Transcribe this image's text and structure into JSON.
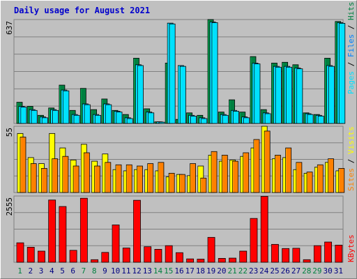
{
  "title": "Daily usage for August 2021",
  "chart_data": [
    {
      "type": "bar",
      "panel": "top",
      "max_label": "637",
      "ylim": [
        0,
        637
      ],
      "grid": true,
      "categories": [
        "1",
        "2",
        "3",
        "4",
        "5",
        "6",
        "7",
        "8",
        "9",
        "10",
        "11",
        "12",
        "13",
        "14",
        "15",
        "16",
        "17",
        "18",
        "19",
        "20",
        "21",
        "22",
        "23",
        "24",
        "25",
        "26",
        "27",
        "28",
        "29",
        "30",
        "31"
      ],
      "legend_text": [
        "Pages",
        "Files",
        "Hits"
      ],
      "legend_placement": "right",
      "series": [
        {
          "name": "Hits",
          "color": "#008040",
          "values": [
            130,
            105,
            50,
            95,
            235,
            80,
            215,
            85,
            150,
            80,
            55,
            400,
            90,
            10,
            370,
            25,
            65,
            50,
            637,
            70,
            145,
            70,
            410,
            85,
            370,
            375,
            360,
            65,
            55,
            400,
            625
          ]
        },
        {
          "name": "Files",
          "color": "#00c0ff",
          "values": [
            105,
            85,
            40,
            85,
            205,
            55,
            120,
            55,
            120,
            75,
            35,
            360,
            70,
            10,
            615,
            355,
            50,
            35,
            622,
            55,
            80,
            40,
            370,
            65,
            350,
            350,
            340,
            60,
            50,
            355,
            618
          ]
        },
        {
          "name": "Pages",
          "color": "#00e0ff",
          "values": [
            100,
            80,
            35,
            80,
            200,
            50,
            115,
            50,
            115,
            70,
            30,
            355,
            65,
            8,
            610,
            350,
            45,
            30,
            618,
            50,
            75,
            35,
            365,
            60,
            345,
            345,
            335,
            55,
            45,
            350,
            614
          ]
        }
      ]
    },
    {
      "type": "bar",
      "panel": "middle",
      "max_label": "55",
      "ylim": [
        0,
        55
      ],
      "grid": true,
      "categories": [
        "1",
        "2",
        "3",
        "4",
        "5",
        "6",
        "7",
        "8",
        "9",
        "10",
        "11",
        "12",
        "13",
        "14",
        "15",
        "16",
        "17",
        "18",
        "19",
        "20",
        "21",
        "22",
        "23",
        "24",
        "25",
        "26",
        "27",
        "28",
        "29",
        "30",
        "31"
      ],
      "legend_text": [
        "Sites",
        "Visits"
      ],
      "legend_placement": "right",
      "series": [
        {
          "name": "Visits",
          "color": "#ffff00",
          "values": [
            49,
            29,
            24,
            49,
            37,
            27,
            40,
            26,
            32,
            19,
            18,
            19,
            19,
            18,
            13,
            15,
            14,
            22,
            31,
            26,
            27,
            30,
            37,
            55,
            28,
            29,
            19,
            16,
            21,
            25,
            18
          ]
        },
        {
          "name": "Sites",
          "color": "#ff8000",
          "values": [
            46,
            24,
            20,
            28,
            30,
            22,
            33,
            22,
            25,
            23,
            23,
            22,
            24,
            25,
            16,
            15,
            24,
            12,
            34,
            31,
            26,
            33,
            44,
            51,
            31,
            37,
            25,
            17,
            23,
            28,
            20
          ]
        }
      ]
    },
    {
      "type": "bar",
      "panel": "bottom",
      "max_label": "2555",
      "ylim": [
        0,
        2555
      ],
      "grid": true,
      "categories": [
        "1",
        "2",
        "3",
        "4",
        "5",
        "6",
        "7",
        "8",
        "9",
        "10",
        "11",
        "12",
        "13",
        "14",
        "15",
        "16",
        "17",
        "18",
        "19",
        "20",
        "21",
        "22",
        "23",
        "24",
        "25",
        "26",
        "27",
        "28",
        "29",
        "30",
        "31"
      ],
      "legend_text": [
        "KBytes"
      ],
      "legend_placement": "right",
      "series": [
        {
          "name": "KBytes",
          "color": "#ff0000",
          "values": [
            750,
            580,
            430,
            2400,
            2150,
            460,
            2470,
            100,
            380,
            1440,
            550,
            2390,
            600,
            500,
            640,
            370,
            130,
            120,
            960,
            150,
            160,
            430,
            1690,
            2540,
            690,
            530,
            540,
            100,
            640,
            780,
            660
          ]
        }
      ]
    }
  ],
  "weekend_days": [
    "1",
    "7",
    "8",
    "14",
    "15",
    "21",
    "22",
    "28",
    "29"
  ],
  "colors": {
    "title": "#0000cc",
    "background": "#c0c0c0",
    "grid": "#808080",
    "weekday_label": "#000080",
    "weekend_label": "#008040",
    "legend_pages": "#00e0ff",
    "legend_files": "#0080ff",
    "legend_hits": "#008040",
    "legend_sites": "#ff8000",
    "legend_visits": "#ffff00",
    "legend_kbytes": "#ff0000",
    "legend_sep": "#000000"
  }
}
